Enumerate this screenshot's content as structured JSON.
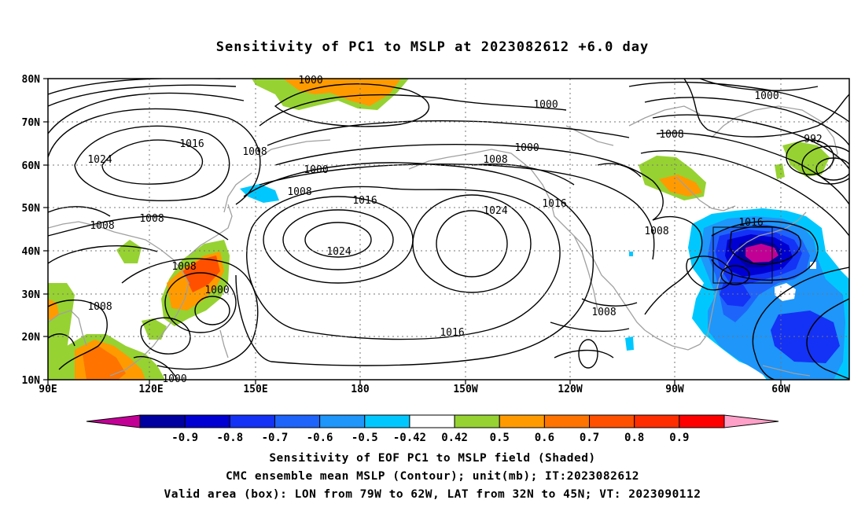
{
  "title": "Sensitivity of PC1 to MSLP at 2023082612 +6.0 day",
  "latitude_labels": [
    "80N",
    "70N",
    "60N",
    "50N",
    "40N",
    "30N",
    "20N",
    "10N"
  ],
  "longitude_labels": [
    "90E",
    "120E",
    "150E",
    "180",
    "150W",
    "120W",
    "90W",
    "60W"
  ],
  "contour_labels": [
    {
      "text": "1000",
      "id": "c1000-arctic"
    },
    {
      "text": "1000",
      "id": "c1000-north"
    },
    {
      "text": "1000",
      "id": "c1000-alaska"
    },
    {
      "text": "1000",
      "id": "c1000-bering"
    },
    {
      "text": "1000",
      "id": "c1000-canada"
    },
    {
      "text": "1000",
      "id": "c1000-japan"
    },
    {
      "text": "992",
      "id": "c992"
    },
    {
      "text": "1024",
      "id": "c1024-siberia"
    },
    {
      "text": "1024",
      "id": "c1024-west"
    },
    {
      "text": "1024",
      "id": "c1024-east"
    },
    {
      "text": "1016",
      "id": "c1016-siberia"
    },
    {
      "text": "1016",
      "id": "c1016-pacific"
    },
    {
      "text": "1016",
      "id": "c1016-na"
    },
    {
      "text": "1016",
      "id": "c1016-south"
    },
    {
      "text": "1016",
      "id": "c1016-atl"
    },
    {
      "text": "1008",
      "id": "c1008-kamchatka"
    },
    {
      "text": "1008",
      "id": "c1008-aleut"
    },
    {
      "text": "1008",
      "id": "c1008-china1"
    },
    {
      "text": "1008",
      "id": "c1008-china2"
    },
    {
      "text": "1008",
      "id": "c1008-japan"
    },
    {
      "text": "1008",
      "id": "c1008-india"
    },
    {
      "text": "1008",
      "id": "c1008-scs"
    },
    {
      "text": "1008",
      "id": "c1008-hudson"
    },
    {
      "text": "1008",
      "id": "c1008-gulf"
    },
    {
      "text": "1008",
      "id": "c1008-mexico"
    },
    {
      "text": "1000",
      "id": "c1000-typhoon"
    }
  ],
  "colorbar": {
    "colors": [
      "#c30096",
      "#0000a0",
      "#0000d2",
      "#1432f5",
      "#1e64fa",
      "#1e96fa",
      "#00c8ff",
      "#ffffff",
      "#96d232",
      "#ff9b00",
      "#ff7300",
      "#ff5000",
      "#ff2d00",
      "#ff0000",
      "#ffa0c8"
    ],
    "tick_labels": [
      "-0.9",
      "-0.8",
      "-0.7",
      "-0.6",
      "-0.5",
      "-0.42",
      "0.42",
      "0.5",
      "0.6",
      "0.7",
      "0.8",
      "0.9"
    ]
  },
  "valid_box": {
    "lon_min": "79W",
    "lon_max": "62W",
    "lat_min": "32N",
    "lat_max": "45N"
  },
  "footnotes": [
    "Sensitivity of EOF PC1 to MSLP field (Shaded)",
    "CMC ensemble mean MSLP (Contour); unit(mb); IT:2023082612",
    "Valid area (box): LON from 79W to 62W, LAT from 32N to 45N; VT: 2023090112"
  ]
}
